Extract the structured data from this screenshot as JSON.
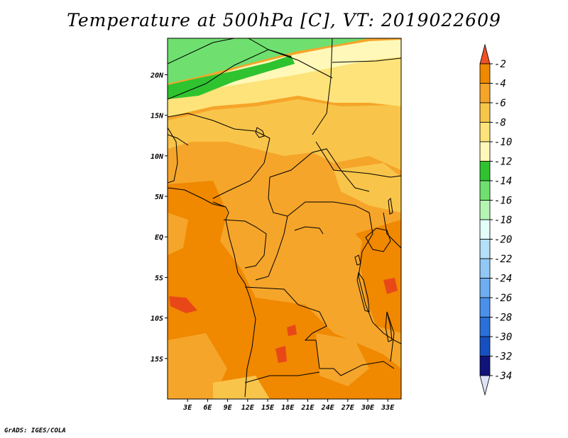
{
  "title": "Temperature at 500hPa [C], VT: 2019022609",
  "credit": "GrADS: IGES/COLA",
  "map": {
    "lon_labels": [
      "3E",
      "6E",
      "9E",
      "12E",
      "15E",
      "18E",
      "21E",
      "24E",
      "27E",
      "30E",
      "33E"
    ],
    "lat_labels": [
      "20N",
      "15N",
      "10N",
      "5N",
      "EQ",
      "5S",
      "10S",
      "15S"
    ],
    "lon_range": [
      0,
      35
    ],
    "lat_range": [
      -20,
      24.5
    ]
  },
  "colorbar": {
    "labels": [
      "-2",
      "-4",
      "-6",
      "-8",
      "-10",
      "-12",
      "-14",
      "-16",
      "-18",
      "-20",
      "-22",
      "-24",
      "-26",
      "-28",
      "-30",
      "-32",
      "-34"
    ],
    "colors": [
      "#e84818",
      "#f08800",
      "#f5a52a",
      "#f8c54a",
      "#fde37a",
      "#fff8b8",
      "#30c330",
      "#6fe06f",
      "#b4f5b4",
      "#e4fffa",
      "#b4e0f8",
      "#92c8f5",
      "#6eaef0",
      "#4a90e8",
      "#2a70d8",
      "#1650c0",
      "#10137a"
    ],
    "top_color": "#f05025",
    "bottom_color": "#dde4f5"
  },
  "fields": {
    "ocean_color": "#f5a52a",
    "land_color": "#f8c54a",
    "warm_color": "#f08800",
    "hot_color": "#e84818",
    "cool_color": "#fde37a",
    "pale_color": "#fff8b8",
    "green_color": "#6fe06f",
    "dark_green_color": "#30c330"
  }
}
